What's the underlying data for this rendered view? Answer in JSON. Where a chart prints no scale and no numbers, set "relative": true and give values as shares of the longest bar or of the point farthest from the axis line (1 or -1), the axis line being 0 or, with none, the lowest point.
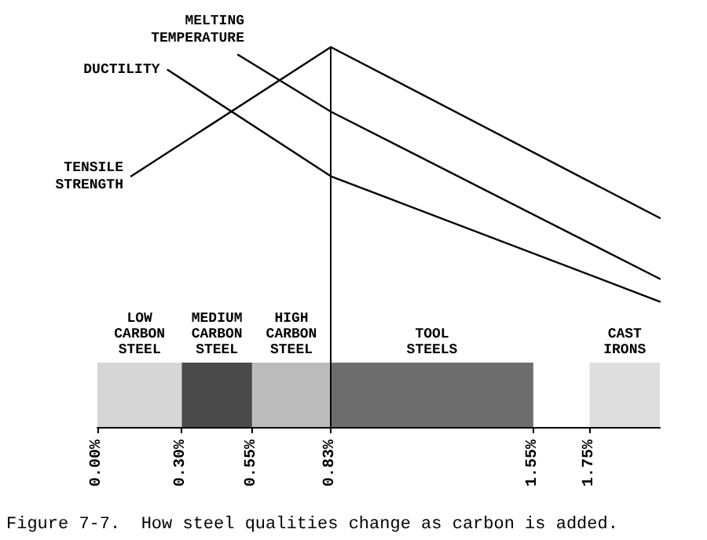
{
  "chart_data": {
    "type": "line",
    "relative": true,
    "grid": false,
    "legend": false,
    "marker": "none",
    "line_style": "solid",
    "annotations": [
      "Figure 7-7.  How steel qualities change as carbon is added."
    ],
    "xlim": [
      0,
      2.0
    ],
    "xticks": [
      {
        "value": 0,
        "label": "0.00%"
      },
      {
        "value": 0.3,
        "label": "0.30%"
      },
      {
        "value": 0.55,
        "label": "0.55%"
      },
      {
        "value": 0.83,
        "label": "0.83%"
      },
      {
        "value": 1.55,
        "label": "1.55%"
      },
      {
        "value": 1.75,
        "label": "1.75%"
      }
    ],
    "series": [
      {
        "name": "TENSILE STRENGTH",
        "color": "#000000",
        "x": [
          0.12,
          0.83,
          2.0
        ],
        "values": [
          0.66,
          1,
          0.55
        ]
      },
      {
        "name": "DUCTILITY",
        "color": "#000000",
        "x": [
          0.25,
          0.83,
          2.0
        ],
        "values": [
          0.94,
          0.66,
          0.33
        ]
      },
      {
        "name": "MELTING TEMPERATURE",
        "color": "#000000",
        "x": [
          0.5,
          0.83,
          2.0
        ],
        "values": [
          0.98,
          0.83,
          0.39
        ]
      }
    ],
    "ref_lines": [
      {
        "axis": "x",
        "value": 0.83,
        "color": "#000000"
      }
    ],
    "bands": [
      {
        "axis": "x",
        "from": 0,
        "to": 0.3,
        "label": "LOW CARBON STEEL",
        "color": "#d6d6d6"
      },
      {
        "axis": "x",
        "from": 0.3,
        "to": 0.55,
        "label": "MEDIUM CARBON STEEL",
        "color": "#4a4a4a"
      },
      {
        "axis": "x",
        "from": 0.55,
        "to": 0.83,
        "label": "HIGH CARBON STEEL",
        "color": "#bcbcbc"
      },
      {
        "axis": "x",
        "from": 0.83,
        "to": 1.55,
        "label": "TOOL STEELS",
        "color": "#6e6e6e"
      },
      {
        "axis": "x",
        "from": 1.75,
        "to": 2.0,
        "label": "CAST IRONS",
        "color": "#dedede"
      }
    ]
  }
}
